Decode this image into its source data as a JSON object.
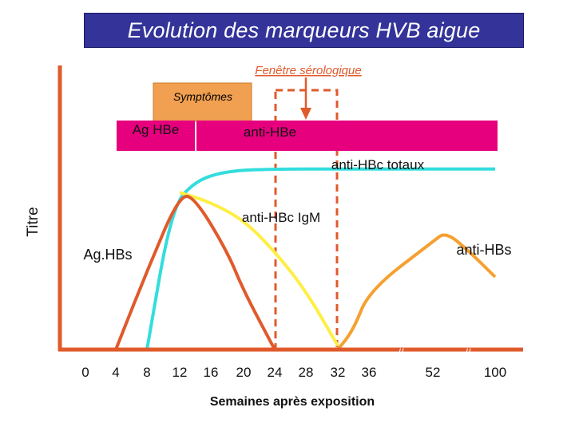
{
  "title": "Evolution des marqueurs  HVB aigue",
  "colors": {
    "title_bg": "#333399",
    "axis": "#e05a2b",
    "symptoms": "#f0a050",
    "magenta": "#e6007e",
    "cyan": "#33dddd",
    "yellow": "#ffee44",
    "orange_line": "#e05a2b",
    "anti_hbs_line": "#f5a030",
    "window": "#e05a2b"
  },
  "chart_data": {
    "type": "line",
    "title": "Evolution des marqueurs  HVB aigue",
    "xlabel": "Semaines après exposition",
    "ylabel": "Titre",
    "x_ticks": [
      "0",
      "4",
      "8",
      "12",
      "16",
      "20",
      "24",
      "28",
      "32",
      "36",
      "52",
      "100"
    ],
    "x_break_marks": [
      "//",
      "//"
    ],
    "grid": false,
    "series": [
      {
        "name": "anti-HBc totaux",
        "color": "#33dddd",
        "points": [
          [
            8,
            0
          ],
          [
            11,
            0.72
          ],
          [
            14,
            0.86
          ],
          [
            18,
            0.91
          ],
          [
            24,
            0.92
          ],
          [
            36,
            0.92
          ],
          [
            52,
            0.92
          ],
          [
            100,
            0.92
          ]
        ]
      },
      {
        "name": "anti-HBc IgM",
        "color": "#ffee44",
        "points": [
          [
            12,
            0.8
          ],
          [
            16,
            0.75
          ],
          [
            20,
            0.66
          ],
          [
            24,
            0.5
          ],
          [
            28,
            0.3
          ],
          [
            32,
            0.02
          ]
        ]
      },
      {
        "name": "Ag.HBs",
        "color": "#e05a2b",
        "points": [
          [
            4,
            0
          ],
          [
            8,
            0.4
          ],
          [
            12,
            0.79
          ],
          [
            14,
            0.77
          ],
          [
            18,
            0.5
          ],
          [
            20,
            0.3
          ],
          [
            24,
            0
          ]
        ]
      },
      {
        "name": "anti-HBs",
        "color": "#f5a030",
        "points": [
          [
            32,
            0
          ],
          [
            34,
            0.1
          ],
          [
            36,
            0.3
          ],
          [
            52,
            0.55
          ],
          [
            62,
            0.6
          ],
          [
            80,
            0.5
          ],
          [
            100,
            0.37
          ]
        ]
      }
    ],
    "bars": [
      {
        "label": "Symptômes",
        "color": "#f0a050"
      },
      {
        "label": "Ag HBe",
        "color": "#e6007e"
      },
      {
        "label": "anti-HBe",
        "color": "#e6007e"
      }
    ],
    "annotations": [
      {
        "text": "Fenêtre sérologique",
        "color": "#e05a2b"
      }
    ]
  }
}
